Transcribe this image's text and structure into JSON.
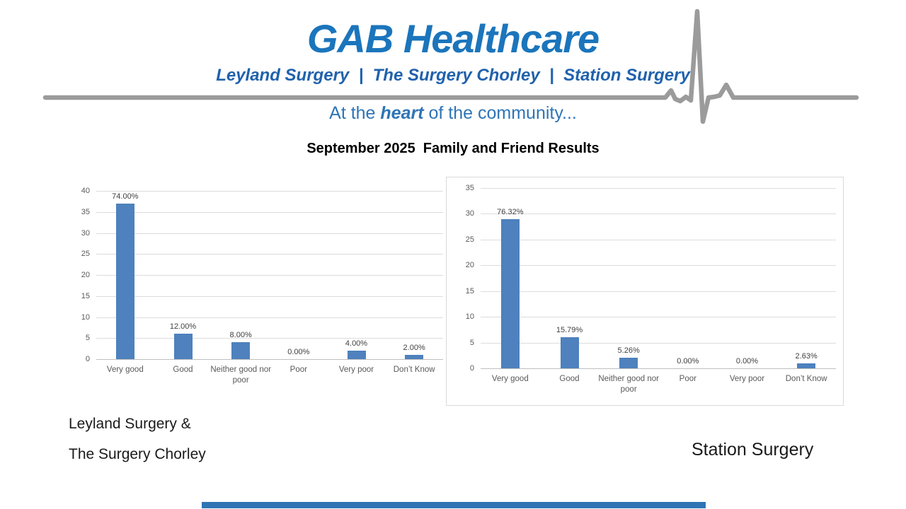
{
  "header": {
    "logo": "GAB Healthcare",
    "subtitle": "Leyland Surgery  |  The Surgery Chorley  |  Station Surgery",
    "tagline": {
      "pre": "At the ",
      "bold": "heart",
      "post": " of the community..."
    }
  },
  "title": {
    "date": "September 2025",
    "rest": "Family and Friend Results"
  },
  "captions": {
    "left_line1": "Leyland Surgery &",
    "left_line2": "The Surgery Chorley",
    "right": "Station Surgery"
  },
  "colors": {
    "logo_blue": "#1b75bc",
    "subtitle_blue": "#2062ac",
    "tagline_blue": "#2e75b6",
    "bar_blue": "#4e81bd",
    "ekg_gray": "#9b9b9b",
    "footer_bar_blue": "#2e74b5"
  },
  "chart_data": [
    {
      "type": "bar",
      "title": "",
      "surgery": "Leyland Surgery & The Surgery Chorley",
      "categories": [
        "Very good",
        "Good",
        "Neither good nor poor",
        "Poor",
        "Very poor",
        "Don’t Know"
      ],
      "values": [
        37,
        6,
        4,
        0,
        2,
        1
      ],
      "labels": [
        "74.00%",
        "12.00%",
        "8.00%",
        "0.00%",
        "4.00%",
        "2.00%"
      ],
      "xlabel": "",
      "ylabel": "",
      "ylim": [
        0,
        40
      ],
      "yticks": [
        0,
        5,
        10,
        15,
        20,
        25,
        30,
        35,
        40
      ],
      "grid": true,
      "legend": "none"
    },
    {
      "type": "bar",
      "title": "",
      "surgery": "Station Surgery",
      "categories": [
        "Very good",
        "Good",
        "Neither good nor poor",
        "Poor",
        "Very poor",
        "Don’t Know"
      ],
      "values": [
        29,
        6,
        2,
        0,
        0,
        1
      ],
      "labels": [
        "76.32%",
        "15.79%",
        "5.26%",
        "0.00%",
        "0.00%",
        "2.63%"
      ],
      "xlabel": "",
      "ylabel": "",
      "ylim": [
        0,
        35
      ],
      "yticks": [
        0,
        5,
        10,
        15,
        20,
        25,
        30,
        35
      ],
      "grid": true,
      "legend": "none"
    }
  ]
}
